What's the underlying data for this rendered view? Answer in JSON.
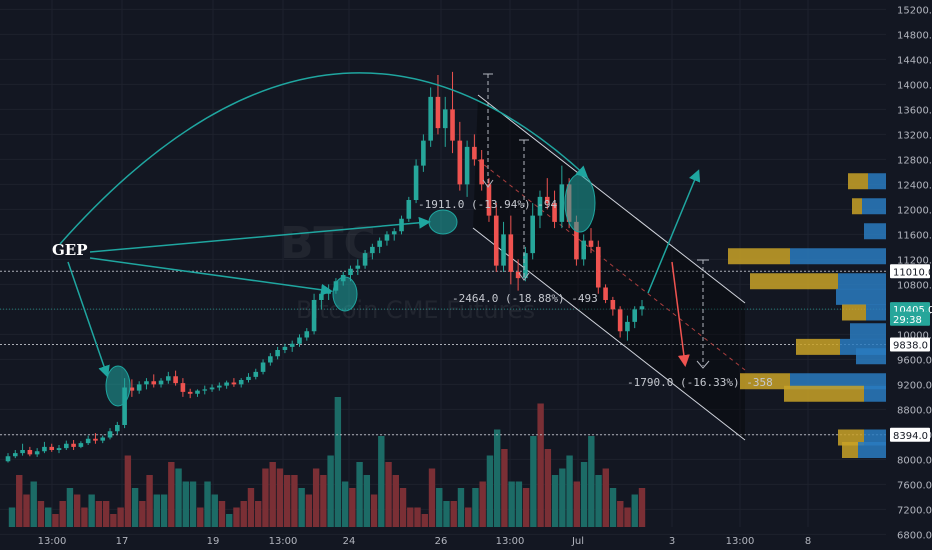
{
  "watermark": {
    "symbol": "BTC",
    "name": "Bitcoin CME Futures"
  },
  "annotation_label": "GEP",
  "measurements": [
    {
      "text": "-1911.0 (-13.94%) -94"
    },
    {
      "text": "-2464.0 (-18.88%) -493"
    },
    {
      "text": "-1790.0 (-16.33%) -358"
    }
  ],
  "price_tags": [
    {
      "price": 11010,
      "text": "11010.0",
      "bg": "#ffffff",
      "fg": "#131722"
    },
    {
      "price": 10405,
      "text": "10405.0",
      "bg": "#26a69a",
      "fg": "#ffffff"
    },
    {
      "price": 10250,
      "text": "29:38",
      "bg": "#26a69a",
      "fg": "#ffffff"
    },
    {
      "price": 9838,
      "text": "9838.0",
      "bg": "#ffffff",
      "fg": "#131722"
    },
    {
      "price": 8394,
      "text": "8394.0",
      "bg": "#ffffff",
      "fg": "#131722"
    }
  ],
  "colors": {
    "up": "#26a69a",
    "down": "#ef5350",
    "vol_up": "#1c6b66",
    "vol_down": "#7a2f35",
    "annot": "#1fa6a0",
    "background": "#131722"
  },
  "chart_data": {
    "type": "candlestick",
    "y_axis": {
      "min": 6550,
      "max": 15350,
      "ticks": [
        15200,
        14800,
        14400,
        14000,
        13600,
        13200,
        12800,
        12400,
        12000,
        11600,
        11200,
        10800,
        10400,
        10000,
        9600,
        9200,
        8800,
        8400,
        8000,
        7600,
        7200,
        6800
      ]
    },
    "x_axis": {
      "tick_labels": [
        "13:00",
        "17",
        "19",
        "13:00",
        "24",
        "26",
        "13:00",
        "Jul",
        "3",
        "13:00",
        "8"
      ]
    },
    "horizontal_levels": [
      11010,
      10405,
      9838,
      8394
    ],
    "ohlc": [
      [
        7970,
        8100,
        7950,
        8050
      ],
      [
        8050,
        8150,
        8020,
        8100
      ],
      [
        8100,
        8250,
        8060,
        8150
      ],
      [
        8150,
        8200,
        8050,
        8080
      ],
      [
        8080,
        8180,
        8040,
        8130
      ],
      [
        8130,
        8280,
        8100,
        8200
      ],
      [
        8200,
        8250,
        8120,
        8150
      ],
      [
        8150,
        8230,
        8100,
        8180
      ],
      [
        8180,
        8300,
        8150,
        8250
      ],
      [
        8250,
        8310,
        8150,
        8200
      ],
      [
        8200,
        8290,
        8180,
        8260
      ],
      [
        8260,
        8380,
        8230,
        8330
      ],
      [
        8330,
        8420,
        8250,
        8300
      ],
      [
        8300,
        8380,
        8260,
        8350
      ],
      [
        8350,
        8500,
        8320,
        8450
      ],
      [
        8450,
        8600,
        8400,
        8550
      ],
      [
        8550,
        9300,
        8500,
        9150
      ],
      [
        9150,
        9280,
        9000,
        9100
      ],
      [
        9100,
        9250,
        9050,
        9200
      ],
      [
        9200,
        9300,
        9120,
        9250
      ],
      [
        9250,
        9360,
        9150,
        9200
      ],
      [
        9200,
        9300,
        9150,
        9260
      ],
      [
        9260,
        9400,
        9210,
        9330
      ],
      [
        9330,
        9420,
        9180,
        9220
      ],
      [
        9220,
        9300,
        9000,
        9080
      ],
      [
        9080,
        9130,
        8980,
        9050
      ],
      [
        9050,
        9120,
        9000,
        9100
      ],
      [
        9100,
        9180,
        9040,
        9120
      ],
      [
        9120,
        9200,
        9080,
        9150
      ],
      [
        9150,
        9230,
        9100,
        9180
      ],
      [
        9180,
        9260,
        9130,
        9230
      ],
      [
        9230,
        9300,
        9160,
        9200
      ],
      [
        9200,
        9300,
        9150,
        9270
      ],
      [
        9270,
        9380,
        9230,
        9320
      ],
      [
        9320,
        9450,
        9280,
        9400
      ],
      [
        9400,
        9600,
        9360,
        9550
      ],
      [
        9550,
        9700,
        9500,
        9650
      ],
      [
        9650,
        9800,
        9600,
        9750
      ],
      [
        9750,
        9850,
        9700,
        9800
      ],
      [
        9800,
        9900,
        9720,
        9850
      ],
      [
        9850,
        10000,
        9800,
        9950
      ],
      [
        9950,
        10100,
        9900,
        10050
      ],
      [
        10050,
        10650,
        10000,
        10550
      ],
      [
        10550,
        10700,
        10400,
        10650
      ],
      [
        10650,
        10800,
        10550,
        10700
      ],
      [
        10700,
        10900,
        10650,
        10850
      ],
      [
        10850,
        11000,
        10780,
        10950
      ],
      [
        10950,
        11100,
        10850,
        11050
      ],
      [
        11050,
        11200,
        10950,
        11100
      ],
      [
        11100,
        11350,
        11050,
        11300
      ],
      [
        11300,
        11450,
        11200,
        11400
      ],
      [
        11400,
        11550,
        11300,
        11500
      ],
      [
        11500,
        11650,
        11420,
        11600
      ],
      [
        11600,
        11700,
        11500,
        11650
      ],
      [
        11650,
        11900,
        11600,
        11850
      ],
      [
        11850,
        12200,
        11800,
        12150
      ],
      [
        12150,
        12800,
        12100,
        12700
      ],
      [
        12700,
        13200,
        12600,
        13100
      ],
      [
        13100,
        13950,
        13000,
        13800
      ],
      [
        13800,
        14150,
        13200,
        13300
      ],
      [
        13300,
        13800,
        13000,
        13600
      ],
      [
        13600,
        14200,
        12900,
        13100
      ],
      [
        13100,
        13400,
        12300,
        12400
      ],
      [
        12400,
        13100,
        12200,
        13000
      ],
      [
        13000,
        13200,
        12700,
        12800
      ],
      [
        12800,
        12950,
        12300,
        12400
      ],
      [
        12400,
        12500,
        11800,
        11900
      ],
      [
        11900,
        12100,
        11000,
        11100
      ],
      [
        11100,
        11800,
        11000,
        11600
      ],
      [
        11600,
        11900,
        10800,
        11000
      ],
      [
        11000,
        11200,
        10700,
        10900
      ],
      [
        10900,
        11400,
        10850,
        11300
      ],
      [
        11300,
        12100,
        11200,
        11900
      ],
      [
        11900,
        12300,
        11700,
        12200
      ],
      [
        12200,
        12500,
        12000,
        12100
      ],
      [
        12100,
        12300,
        11700,
        11800
      ],
      [
        11800,
        12700,
        11700,
        12400
      ],
      [
        12400,
        12500,
        11700,
        11800
      ],
      [
        11800,
        11900,
        11100,
        11200
      ],
      [
        11200,
        11600,
        11100,
        11500
      ],
      [
        11500,
        11700,
        11300,
        11400
      ],
      [
        11400,
        11500,
        10650,
        10750
      ],
      [
        10750,
        10800,
        10500,
        10550
      ],
      [
        10550,
        10600,
        10300,
        10400
      ],
      [
        10400,
        10450,
        9950,
        10050
      ],
      [
        10050,
        10300,
        9900,
        10200
      ],
      [
        10200,
        10450,
        10100,
        10400
      ],
      [
        10400,
        10550,
        10300,
        10450
      ]
    ],
    "volume_max": 100,
    "volume": [
      [
        15,
        1
      ],
      [
        40,
        0
      ],
      [
        25,
        0
      ],
      [
        35,
        1
      ],
      [
        20,
        0
      ],
      [
        15,
        1
      ],
      [
        10,
        0
      ],
      [
        20,
        0
      ],
      [
        30,
        1
      ],
      [
        25,
        0
      ],
      [
        15,
        0
      ],
      [
        25,
        1
      ],
      [
        20,
        0
      ],
      [
        20,
        0
      ],
      [
        10,
        0
      ],
      [
        15,
        0
      ],
      [
        55,
        0
      ],
      [
        30,
        1
      ],
      [
        20,
        0
      ],
      [
        40,
        0
      ],
      [
        25,
        1
      ],
      [
        25,
        1
      ],
      [
        50,
        0
      ],
      [
        45,
        1
      ],
      [
        35,
        1
      ],
      [
        35,
        1
      ],
      [
        15,
        0
      ],
      [
        35,
        1
      ],
      [
        25,
        1
      ],
      [
        20,
        0
      ],
      [
        10,
        1
      ],
      [
        15,
        0
      ],
      [
        20,
        0
      ],
      [
        30,
        0
      ],
      [
        20,
        0
      ],
      [
        45,
        0
      ],
      [
        50,
        0
      ],
      [
        45,
        0
      ],
      [
        40,
        0
      ],
      [
        40,
        0
      ],
      [
        30,
        1
      ],
      [
        25,
        0
      ],
      [
        45,
        0
      ],
      [
        40,
        0
      ],
      [
        55,
        1
      ],
      [
        100,
        1
      ],
      [
        35,
        1
      ],
      [
        30,
        0
      ],
      [
        50,
        1
      ],
      [
        40,
        1
      ],
      [
        25,
        0
      ],
      [
        70,
        1
      ],
      [
        50,
        0
      ],
      [
        40,
        0
      ],
      [
        30,
        0
      ],
      [
        15,
        0
      ],
      [
        15,
        0
      ],
      [
        10,
        0
      ],
      [
        45,
        0
      ],
      [
        30,
        1
      ],
      [
        20,
        1
      ],
      [
        20,
        0
      ],
      [
        30,
        1
      ],
      [
        15,
        0
      ],
      [
        30,
        1
      ],
      [
        35,
        0
      ],
      [
        55,
        1
      ],
      [
        75,
        1
      ],
      [
        60,
        0
      ],
      [
        35,
        1
      ],
      [
        35,
        1
      ],
      [
        30,
        0
      ],
      [
        70,
        1
      ],
      [
        95,
        0
      ],
      [
        60,
        0
      ],
      [
        40,
        1
      ],
      [
        45,
        1
      ],
      [
        55,
        1
      ],
      [
        35,
        0
      ],
      [
        50,
        1
      ],
      [
        70,
        1
      ],
      [
        40,
        1
      ],
      [
        45,
        0
      ],
      [
        30,
        1
      ],
      [
        20,
        0
      ],
      [
        15,
        0
      ],
      [
        25,
        1
      ],
      [
        30,
        0
      ]
    ],
    "volume_profile": [
      {
        "price": 12450,
        "gold": 20,
        "blue": 18
      },
      {
        "price": 12050,
        "gold": 10,
        "blue": 24
      },
      {
        "price": 11650,
        "gold": 0,
        "blue": 22
      },
      {
        "price": 11250,
        "gold": 62,
        "blue": 96
      },
      {
        "price": 10850,
        "gold": 88,
        "blue": 48
      },
      {
        "price": 10600,
        "gold": 0,
        "blue": 50
      },
      {
        "price": 10350,
        "gold": 24,
        "blue": 20
      },
      {
        "price": 10050,
        "gold": 0,
        "blue": 36
      },
      {
        "price": 9800,
        "gold": 44,
        "blue": 46
      },
      {
        "price": 9650,
        "gold": 0,
        "blue": 30
      },
      {
        "price": 9250,
        "gold": 50,
        "blue": 96
      },
      {
        "price": 9050,
        "gold": 80,
        "blue": 22
      },
      {
        "price": 8350,
        "gold": 26,
        "blue": 22
      },
      {
        "price": 8150,
        "gold": 16,
        "blue": 28
      }
    ]
  }
}
